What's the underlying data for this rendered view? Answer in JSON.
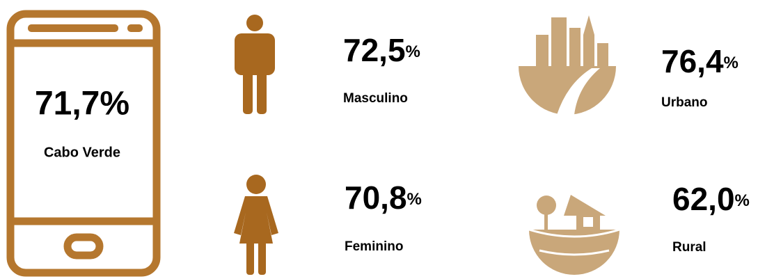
{
  "total": {
    "value": "71,7%",
    "label": "Cabo Verde"
  },
  "items": [
    {
      "value": "72,5",
      "unit": "%",
      "label": "Masculino"
    },
    {
      "value": "76,4",
      "unit": "%",
      "label": "Urbano"
    },
    {
      "value": "70,8",
      "unit": "%",
      "label": "Feminino"
    },
    {
      "value": "62,0",
      "unit": "%",
      "label": "Rural"
    }
  ]
}
